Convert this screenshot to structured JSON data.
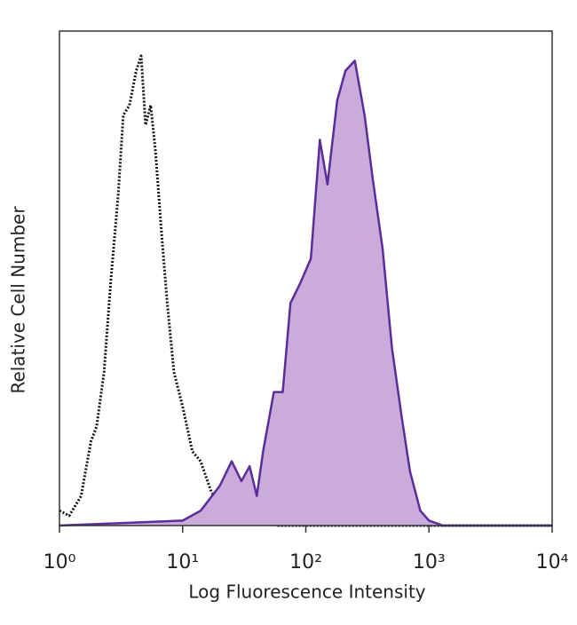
{
  "chart_data": {
    "type": "histogram-overlay",
    "xlabel": "Log Fluorescence Intensity",
    "ylabel": "Relative Cell Number",
    "xscale": "log",
    "xlim": [
      1,
      10000
    ],
    "xticks": [
      {
        "value": 1,
        "label": "10⁰"
      },
      {
        "value": 10,
        "label": "10¹"
      },
      {
        "value": 100,
        "label": "10²"
      },
      {
        "value": 1000,
        "label": "10³"
      },
      {
        "value": 10000,
        "label": "10⁴"
      }
    ],
    "ylim": [
      0,
      100
    ],
    "series": [
      {
        "color": "#111111",
        "style": "dotted",
        "x": [
          1,
          1.2,
          1.5,
          1.8,
          2,
          2.3,
          2.6,
          3,
          3.3,
          3.7,
          4.2,
          4.6,
          5,
          5.5,
          6,
          6.8,
          7.5,
          8.5,
          10,
          12,
          14,
          17,
          20,
          25,
          30,
          40,
          60,
          100,
          1000,
          10000
        ],
        "values": [
          3,
          2,
          6,
          17,
          20,
          31,
          49,
          67,
          83,
          85,
          92,
          95,
          81,
          85,
          76,
          58,
          45,
          31,
          24,
          15,
          13,
          7,
          4,
          2,
          1,
          1,
          0,
          0,
          0,
          0
        ]
      },
      {
        "color": "#5b2c9a",
        "fill": "#c9acd9",
        "style": "solid",
        "x": [
          1,
          10,
          14,
          20,
          25,
          30,
          35,
          40,
          45,
          55,
          65,
          75,
          90,
          110,
          130,
          150,
          180,
          210,
          250,
          300,
          350,
          420,
          500,
          600,
          700,
          850,
          1000,
          1300,
          10000
        ],
        "values": [
          0,
          1,
          3,
          8,
          13,
          9,
          12,
          6,
          15,
          27,
          27,
          45,
          49,
          54,
          78,
          69,
          86,
          92,
          94,
          83,
          70,
          56,
          36,
          22,
          11,
          3,
          1,
          0,
          0
        ]
      }
    ]
  }
}
